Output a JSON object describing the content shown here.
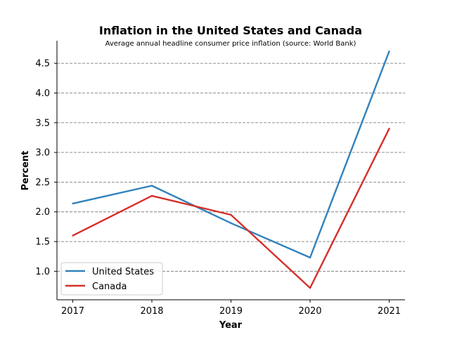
{
  "chart_data": {
    "type": "line",
    "title": "Inflation in the United States and Canada",
    "subtitle": "Average annual headline consumer price inflation (source: World Bank)",
    "xlabel": "Year",
    "ylabel": "Percent",
    "x": [
      2017,
      2018,
      2019,
      2020,
      2021
    ],
    "xticks": [
      "2017",
      "2018",
      "2019",
      "2020",
      "2021"
    ],
    "yticks": [
      "1.0",
      "1.5",
      "2.0",
      "2.5",
      "3.0",
      "3.5",
      "4.0",
      "4.5"
    ],
    "xlim": [
      2016.8,
      2021.2
    ],
    "ylim": [
      0.52,
      4.88
    ],
    "grid": "y-dashed",
    "legend_position": "lower-left",
    "series": [
      {
        "name": "United States",
        "color": "#3182bd",
        "values": [
          2.14,
          2.44,
          1.81,
          1.23,
          4.7
        ]
      },
      {
        "name": "Canada",
        "color": "#d62f2a",
        "values": [
          1.6,
          2.27,
          1.95,
          0.72,
          3.4
        ]
      }
    ]
  }
}
